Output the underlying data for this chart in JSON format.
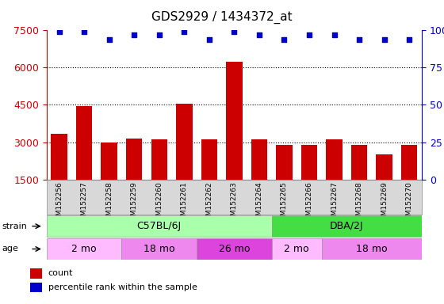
{
  "title": "GDS2929 / 1434372_at",
  "samples": [
    "GSM152256",
    "GSM152257",
    "GSM152258",
    "GSM152259",
    "GSM152260",
    "GSM152261",
    "GSM152262",
    "GSM152263",
    "GSM152264",
    "GSM152265",
    "GSM152266",
    "GSM152267",
    "GSM152268",
    "GSM152269",
    "GSM152270"
  ],
  "counts": [
    3350,
    4450,
    3000,
    3150,
    3100,
    4550,
    3100,
    6250,
    3100,
    2900,
    2900,
    3100,
    2900,
    2500,
    2900
  ],
  "percentile_ranks": [
    99,
    99,
    94,
    97,
    97,
    99,
    94,
    99,
    97,
    94,
    97,
    97,
    94,
    94,
    94
  ],
  "ylim_left": [
    1500,
    7500
  ],
  "ylim_right": [
    0,
    100
  ],
  "yticks_left": [
    1500,
    3000,
    4500,
    6000,
    7500
  ],
  "yticks_right": [
    0,
    25,
    50,
    75,
    100
  ],
  "grid_yticks": [
    3000,
    4500,
    6000
  ],
  "bar_color": "#cc0000",
  "dot_color": "#0000cc",
  "strain_groups": [
    {
      "label": "C57BL/6J",
      "start": 0,
      "end": 8,
      "color": "#aaffaa"
    },
    {
      "label": "DBA/2J",
      "start": 9,
      "end": 14,
      "color": "#44dd44"
    }
  ],
  "age_groups": [
    {
      "label": "2 mo",
      "start": 0,
      "end": 2,
      "color": "#ffbbff"
    },
    {
      "label": "18 mo",
      "start": 3,
      "end": 5,
      "color": "#ee88ee"
    },
    {
      "label": "26 mo",
      "start": 6,
      "end": 8,
      "color": "#dd44dd"
    },
    {
      "label": "2 mo",
      "start": 9,
      "end": 10,
      "color": "#ffbbff"
    },
    {
      "label": "18 mo",
      "start": 11,
      "end": 14,
      "color": "#ee88ee"
    }
  ],
  "left_tick_color": "#cc0000",
  "right_tick_color": "#0000cc",
  "title_fontsize": 11,
  "bar_label_fontsize": 7,
  "annot_fontsize": 9
}
